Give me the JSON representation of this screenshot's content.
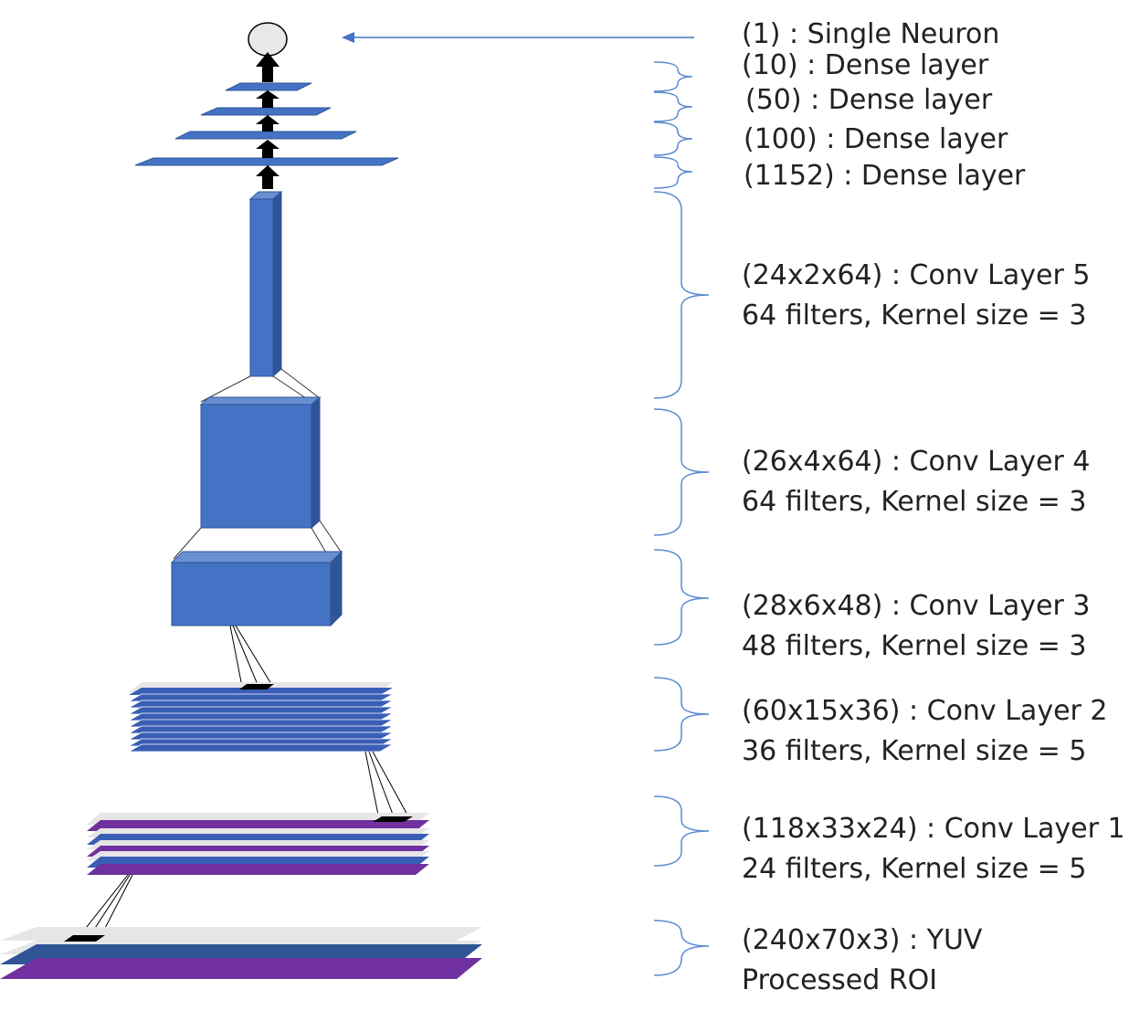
{
  "layers": [
    {
      "id": "output",
      "lines": [
        "(1) : Single Neuron"
      ]
    },
    {
      "id": "dense10",
      "lines": [
        "(10) : Dense layer"
      ]
    },
    {
      "id": "dense50",
      "lines": [
        "(50) : Dense layer"
      ]
    },
    {
      "id": "dense100",
      "lines": [
        "(100) : Dense layer"
      ]
    },
    {
      "id": "dense1152",
      "lines": [
        "(1152) : Dense layer"
      ]
    },
    {
      "id": "conv5",
      "lines": [
        "(24x2x64) : Conv Layer 5",
        "64 filters, Kernel size = 3"
      ]
    },
    {
      "id": "conv4",
      "lines": [
        "(26x4x64) : Conv Layer 4",
        "64 filters, Kernel size = 3"
      ]
    },
    {
      "id": "conv3",
      "lines": [
        "(28x6x48) : Conv Layer 3",
        "48 filters, Kernel size = 3"
      ]
    },
    {
      "id": "conv2",
      "lines": [
        "(60x15x36) : Conv Layer 2",
        "36 filters, Kernel size = 5"
      ]
    },
    {
      "id": "conv1",
      "lines": [
        "(118x33x24) : Conv Layer 1",
        "24 filters, Kernel size = 5"
      ]
    },
    {
      "id": "input",
      "lines": [
        "(240x70x3) : YUV",
        "Processed ROI"
      ]
    }
  ],
  "colors": {
    "block_front": "#4472c4",
    "block_top": "#6a8fd0",
    "block_side": "#2f5597",
    "plate_blue": "#3a5eb5",
    "plate_purple": "#7030a0",
    "plate_gray": "#e7e6e6",
    "arrow": "#000000",
    "bracket": "#5b8bd0",
    "pointer_arrow": "#4472c4",
    "neuron_fill": "#e8e8e8"
  }
}
